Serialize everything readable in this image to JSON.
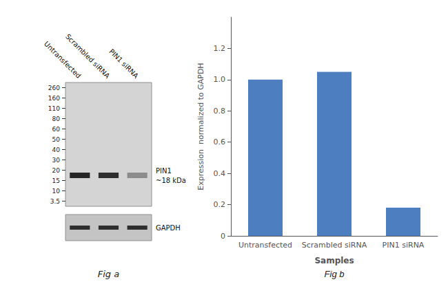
{
  "chart_data": [
    {
      "type": "blot",
      "lane_labels": [
        "Untransfected",
        "Scrambled siRNA",
        "PIN1 siRNA"
      ],
      "marker_labels": [
        "260",
        "160",
        "110",
        "80",
        "60",
        "50",
        "40",
        "30",
        "20",
        "15",
        "10",
        "3.5"
      ],
      "band_labels": [
        "PIN1",
        "~18 kDa"
      ],
      "colors": [
        "#262626",
        "#2e2e2e",
        "#8c8c8c"
      ],
      "loading_label": "GAPDH",
      "loading_color": "#2e2e2e",
      "caption": "Fig a"
    },
    {
      "type": "bar",
      "caption": "Fig b",
      "categories": [
        "Untransfected",
        "Scrambled siRNA",
        "PIN1 siRNA"
      ],
      "values": [
        1.0,
        1.05,
        0.18
      ],
      "color": "#4d7ebf",
      "xlabel": "Samples",
      "ylabel": "Expression  normalized to GAPDH",
      "ylim": [
        0,
        1.4
      ],
      "yticks": [
        0,
        0.2,
        0.4,
        0.6,
        0.8,
        {
          "value": 1.0,
          "label": "1.0"
        },
        1.2
      ],
      "grid": false
    }
  ]
}
